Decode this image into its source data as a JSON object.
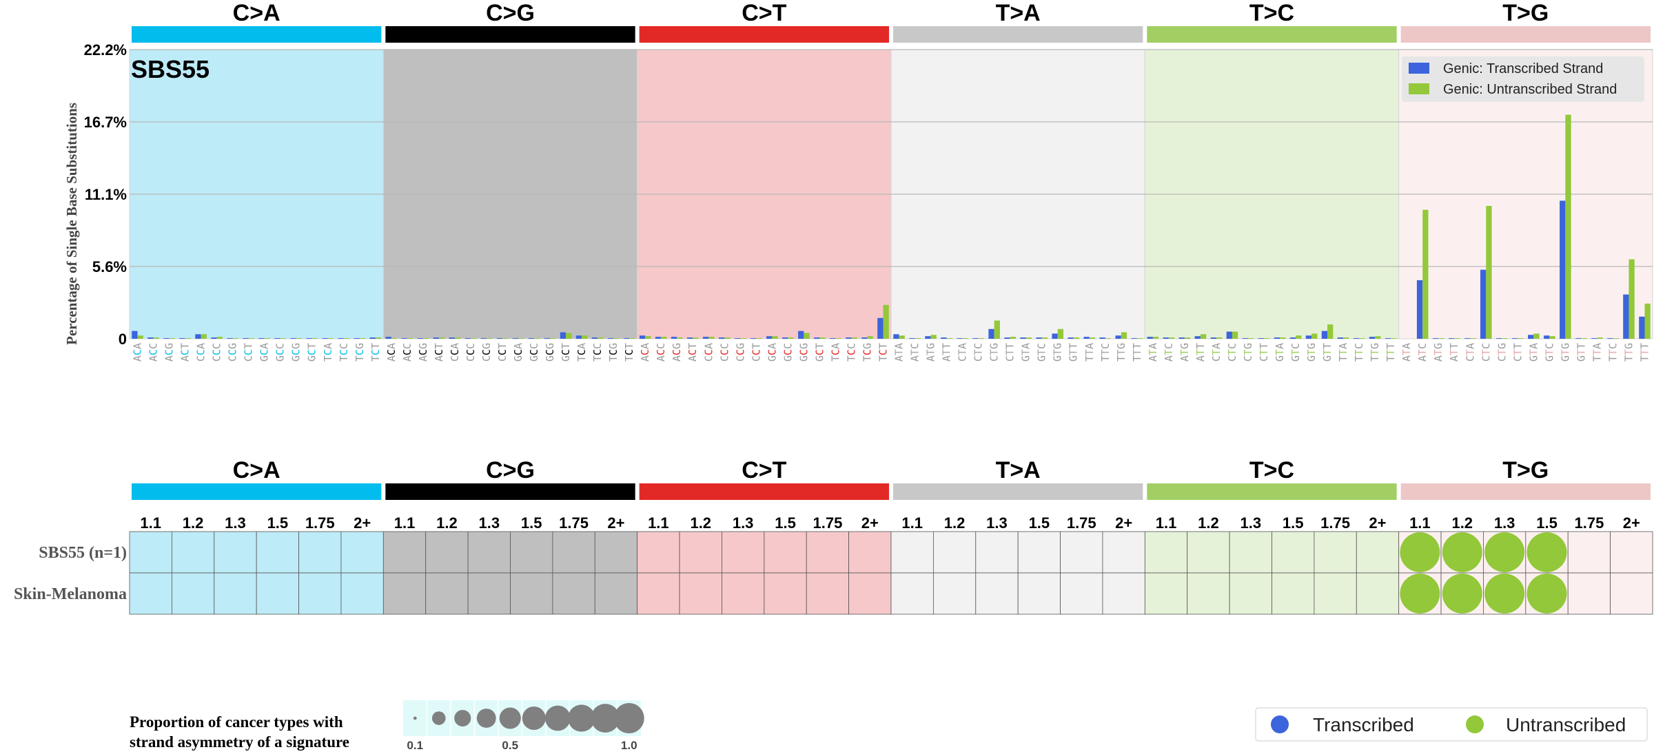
{
  "chart_data": [
    {
      "type": "bar",
      "title": "SBS55",
      "ylabel": "Percentage of Single Base Substitutions",
      "yticks": [
        "0",
        "5.6%",
        "11.1%",
        "16.7%",
        "22.2%"
      ],
      "ylim": [
        0,
        22.2
      ],
      "grid": "horizontal",
      "legend_position": "top-right",
      "mutation_types": [
        "C>A",
        "C>G",
        "C>T",
        "T>A",
        "T>C",
        "T>G"
      ],
      "colors": {
        "C>A": "#03bcee",
        "C>G": "#000000",
        "C>T": "#e32926",
        "T>A": "#c8c8c8",
        "T>C": "#a1cf63",
        "T>G": "#edc7c6"
      },
      "panel_backgrounds": {
        "C>A": "#bdebf7",
        "C>G": "#bfbfbf",
        "C>T": "#f6c8ca",
        "T>A": "#f2f2f2",
        "T>C": "#e6f2d8",
        "T>G": "#fbf0ef"
      },
      "categories": [
        "ACA",
        "ACC",
        "ACG",
        "ACT",
        "CCA",
        "CCC",
        "CCG",
        "CCT",
        "GCA",
        "GCC",
        "GCG",
        "GCT",
        "TCA",
        "TCC",
        "TCG",
        "TCT",
        "ACA",
        "ACC",
        "ACG",
        "ACT",
        "CCA",
        "CCC",
        "CCG",
        "CCT",
        "GCA",
        "GCC",
        "GCG",
        "GCT",
        "TCA",
        "TCC",
        "TCG",
        "TCT",
        "ACA",
        "ACC",
        "ACG",
        "ACT",
        "CCA",
        "CCC",
        "CCG",
        "CCT",
        "GCA",
        "GCC",
        "GCG",
        "GCT",
        "TCA",
        "TCC",
        "TCG",
        "TCT",
        "ATA",
        "ATC",
        "ATG",
        "ATT",
        "CTA",
        "CTC",
        "CTG",
        "CTT",
        "GTA",
        "GTC",
        "GTG",
        "GTT",
        "TTA",
        "TTC",
        "TTG",
        "TTT",
        "ATA",
        "ATC",
        "ATG",
        "ATT",
        "CTA",
        "CTC",
        "CTG",
        "CTT",
        "GTA",
        "GTC",
        "GTG",
        "GTT",
        "TTA",
        "TTC",
        "TTG",
        "TTT",
        "ATA",
        "ATC",
        "ATG",
        "ATT",
        "CTA",
        "CTC",
        "CTG",
        "CTT",
        "GTA",
        "GTC",
        "GTG",
        "GTT",
        "TTA",
        "TTC",
        "TTG",
        "TTT"
      ],
      "series": [
        {
          "name": "Genic: Transcribed Strand",
          "color": "#3c64dc",
          "values": [
            0.6,
            0.1,
            0.05,
            0.05,
            0.35,
            0.1,
            0.05,
            0.05,
            0.05,
            0.05,
            0.05,
            0.05,
            0.05,
            0.05,
            0.05,
            0.1,
            0.15,
            0.05,
            0.05,
            0.1,
            0.1,
            0.05,
            0.05,
            0.05,
            0.05,
            0.05,
            0.05,
            0.5,
            0.25,
            0.1,
            0.05,
            0.05,
            0.25,
            0.15,
            0.15,
            0.1,
            0.15,
            0.1,
            0.05,
            0.05,
            0.2,
            0.1,
            0.6,
            0.1,
            0.05,
            0.1,
            0.1,
            1.6,
            0.35,
            0.05,
            0.2,
            0.1,
            0.05,
            0.05,
            0.75,
            0.1,
            0.1,
            0.1,
            0.4,
            0.1,
            0.15,
            0.1,
            0.25,
            0.05,
            0.15,
            0.1,
            0.1,
            0.2,
            0.1,
            0.55,
            0.05,
            0.05,
            0.1,
            0.1,
            0.25,
            0.6,
            0.1,
            0.05,
            0.15,
            0.05,
            0.0,
            4.5,
            0.05,
            0.05,
            0.05,
            5.3,
            0.05,
            0.05,
            0.3,
            0.25,
            10.6,
            0.05,
            0.05,
            0.05,
            3.4,
            1.7
          ]
        },
        {
          "name": "Genic: Untranscribed Strand",
          "color": "#93c83a",
          "values": [
            0.25,
            0.1,
            0.05,
            0.05,
            0.35,
            0.15,
            0.05,
            0.05,
            0.05,
            0.05,
            0.05,
            0.05,
            0.05,
            0.05,
            0.05,
            0.1,
            0.05,
            0.05,
            0.05,
            0.1,
            0.1,
            0.05,
            0.05,
            0.05,
            0.05,
            0.05,
            0.05,
            0.45,
            0.25,
            0.1,
            0.05,
            0.05,
            0.2,
            0.15,
            0.1,
            0.1,
            0.15,
            0.1,
            0.05,
            0.05,
            0.2,
            0.1,
            0.45,
            0.1,
            0.05,
            0.1,
            0.2,
            2.6,
            0.25,
            0.05,
            0.3,
            0.05,
            0.05,
            0.05,
            1.4,
            0.15,
            0.1,
            0.1,
            0.75,
            0.1,
            0.1,
            0.05,
            0.5,
            0.05,
            0.15,
            0.1,
            0.1,
            0.35,
            0.1,
            0.55,
            0.05,
            0.05,
            0.1,
            0.25,
            0.4,
            1.1,
            0.1,
            0.05,
            0.2,
            0.05,
            0.0,
            9.9,
            0.05,
            0.05,
            0.05,
            10.2,
            0.05,
            0.05,
            0.4,
            0.2,
            17.2,
            0.05,
            0.1,
            0.05,
            6.1,
            2.7
          ]
        }
      ]
    },
    {
      "type": "scatter",
      "title": "",
      "mutation_types": [
        "C>A",
        "C>G",
        "C>T",
        "T>A",
        "T>C",
        "T>G"
      ],
      "columns": [
        "1.1",
        "1.2",
        "1.3",
        "1.5",
        "1.75",
        "2+"
      ],
      "rows": [
        "SBS55 (n=1)",
        "Skin-Melanoma"
      ],
      "point_color": "#93c83a",
      "points": [
        {
          "row": "SBS55 (n=1)",
          "type": "T>G",
          "column": "1.1",
          "proportion": 1.0,
          "strand": "Untranscribed"
        },
        {
          "row": "SBS55 (n=1)",
          "type": "T>G",
          "column": "1.2",
          "proportion": 1.0,
          "strand": "Untranscribed"
        },
        {
          "row": "SBS55 (n=1)",
          "type": "T>G",
          "column": "1.3",
          "proportion": 1.0,
          "strand": "Untranscribed"
        },
        {
          "row": "SBS55 (n=1)",
          "type": "T>G",
          "column": "1.5",
          "proportion": 1.0,
          "strand": "Untranscribed"
        },
        {
          "row": "Skin-Melanoma",
          "type": "T>G",
          "column": "1.1",
          "proportion": 1.0,
          "strand": "Untranscribed"
        },
        {
          "row": "Skin-Melanoma",
          "type": "T>G",
          "column": "1.2",
          "proportion": 1.0,
          "strand": "Untranscribed"
        },
        {
          "row": "Skin-Melanoma",
          "type": "T>G",
          "column": "1.3",
          "proportion": 1.0,
          "strand": "Untranscribed"
        },
        {
          "row": "Skin-Melanoma",
          "type": "T>G",
          "column": "1.5",
          "proportion": 1.0,
          "strand": "Untranscribed"
        }
      ]
    }
  ],
  "size_legend": {
    "title_line1": "Proportion of cancer types with",
    "title_line2": "strand asymmetry of a signature",
    "values": [
      0.1,
      0.2,
      0.3,
      0.4,
      0.5,
      0.6,
      0.7,
      0.8,
      0.9,
      1.0
    ],
    "tick_labels": [
      "0.1",
      "0.5",
      "1.0"
    ],
    "background": "#e0fafa",
    "dot_color": "#808080"
  },
  "strand_legend": {
    "items": [
      {
        "label": "Transcribed",
        "color": "#3c64dc"
      },
      {
        "label": "Untranscribed",
        "color": "#93c83a"
      }
    ]
  }
}
